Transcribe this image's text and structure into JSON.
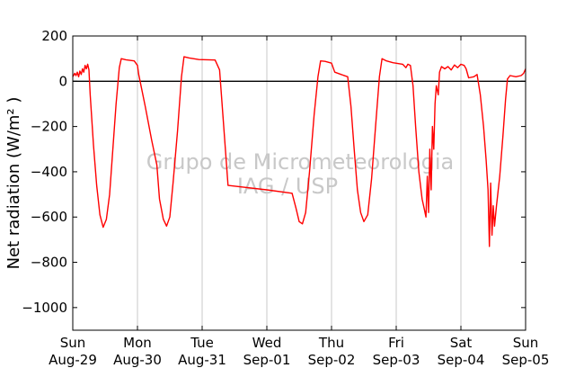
{
  "chart_data": {
    "type": "line",
    "ylabel": "Net radiation (W/m² )",
    "ylim": [
      -1100,
      200
    ],
    "xlim": [
      0,
      7
    ],
    "yticks": [
      200,
      0,
      -200,
      -400,
      -600,
      -800,
      -1000
    ],
    "ytick_labels": [
      "200",
      "0",
      "−200",
      "−400",
      "−600",
      "−800",
      "−1000"
    ],
    "xticks": [
      {
        "x": 0,
        "day": "Sun",
        "date": "Aug-29"
      },
      {
        "x": 1,
        "day": "Mon",
        "date": "Aug-30"
      },
      {
        "x": 2,
        "day": "Tue",
        "date": "Aug-31"
      },
      {
        "x": 3,
        "day": "Wed",
        "date": "Sep-01"
      },
      {
        "x": 4,
        "day": "Thu",
        "date": "Sep-02"
      },
      {
        "x": 5,
        "day": "Fri",
        "date": "Sep-03"
      },
      {
        "x": 6,
        "day": "Sat",
        "date": "Sep-04"
      },
      {
        "x": 7,
        "day": "Sun",
        "date": "Sep-05"
      }
    ],
    "grid": "vertical",
    "reference_line_y": 0,
    "watermark": [
      "Grupo de Micrometeorologia",
      "IAG / USP"
    ],
    "series": [
      {
        "color": "#ff0000",
        "points": [
          [
            0.0,
            20
          ],
          [
            0.03,
            35
          ],
          [
            0.05,
            25
          ],
          [
            0.07,
            40
          ],
          [
            0.09,
            20
          ],
          [
            0.11,
            45
          ],
          [
            0.13,
            30
          ],
          [
            0.15,
            55
          ],
          [
            0.17,
            40
          ],
          [
            0.19,
            70
          ],
          [
            0.21,
            55
          ],
          [
            0.23,
            75
          ],
          [
            0.25,
            50
          ],
          [
            0.27,
            -60
          ],
          [
            0.32,
            -280
          ],
          [
            0.37,
            -460
          ],
          [
            0.42,
            -590
          ],
          [
            0.47,
            -645
          ],
          [
            0.52,
            -610
          ],
          [
            0.57,
            -500
          ],
          [
            0.62,
            -300
          ],
          [
            0.67,
            -100
          ],
          [
            0.72,
            60
          ],
          [
            0.75,
            100
          ],
          [
            0.82,
            95
          ],
          [
            0.95,
            90
          ],
          [
            1.0,
            70
          ],
          [
            1.02,
            30
          ],
          [
            1.12,
            -110
          ],
          [
            1.22,
            -260
          ],
          [
            1.3,
            -370
          ],
          [
            1.34,
            -520
          ],
          [
            1.4,
            -610
          ],
          [
            1.45,
            -640
          ],
          [
            1.5,
            -600
          ],
          [
            1.55,
            -450
          ],
          [
            1.62,
            -220
          ],
          [
            1.68,
            20
          ],
          [
            1.72,
            108
          ],
          [
            1.8,
            103
          ],
          [
            1.95,
            96
          ],
          [
            2.2,
            94
          ],
          [
            2.27,
            50
          ],
          [
            2.4,
            -460
          ],
          [
            3.0,
            -480
          ],
          [
            3.39,
            -495
          ],
          [
            3.45,
            -560
          ],
          [
            3.5,
            -620
          ],
          [
            3.55,
            -630
          ],
          [
            3.6,
            -580
          ],
          [
            3.66,
            -400
          ],
          [
            3.73,
            -150
          ],
          [
            3.79,
            20
          ],
          [
            3.83,
            90
          ],
          [
            3.9,
            88
          ],
          [
            4.0,
            80
          ],
          [
            4.05,
            40
          ],
          [
            4.15,
            30
          ],
          [
            4.25,
            20
          ],
          [
            4.3,
            -110
          ],
          [
            4.35,
            -300
          ],
          [
            4.4,
            -480
          ],
          [
            4.45,
            -580
          ],
          [
            4.5,
            -620
          ],
          [
            4.56,
            -590
          ],
          [
            4.62,
            -430
          ],
          [
            4.68,
            -200
          ],
          [
            4.74,
            20
          ],
          [
            4.78,
            100
          ],
          [
            4.85,
            90
          ],
          [
            4.95,
            82
          ],
          [
            5.1,
            75
          ],
          [
            5.15,
            60
          ],
          [
            5.18,
            75
          ],
          [
            5.22,
            70
          ],
          [
            5.26,
            -20
          ],
          [
            5.3,
            -200
          ],
          [
            5.35,
            -400
          ],
          [
            5.4,
            -520
          ],
          [
            5.43,
            -560
          ],
          [
            5.46,
            -600
          ],
          [
            5.48,
            -420
          ],
          [
            5.5,
            -580
          ],
          [
            5.52,
            -300
          ],
          [
            5.54,
            -480
          ],
          [
            5.56,
            -200
          ],
          [
            5.58,
            -300
          ],
          [
            5.6,
            -100
          ],
          [
            5.62,
            -20
          ],
          [
            5.65,
            -60
          ],
          [
            5.67,
            40
          ],
          [
            5.7,
            65
          ],
          [
            5.75,
            55
          ],
          [
            5.8,
            65
          ],
          [
            5.85,
            50
          ],
          [
            5.9,
            72
          ],
          [
            5.95,
            60
          ],
          [
            6.0,
            75
          ],
          [
            6.05,
            70
          ],
          [
            6.08,
            55
          ],
          [
            6.12,
            15
          ],
          [
            6.2,
            20
          ],
          [
            6.25,
            30
          ],
          [
            6.3,
            -60
          ],
          [
            6.35,
            -200
          ],
          [
            6.39,
            -350
          ],
          [
            6.42,
            -480
          ],
          [
            6.44,
            -730
          ],
          [
            6.46,
            -450
          ],
          [
            6.48,
            -680
          ],
          [
            6.5,
            -550
          ],
          [
            6.52,
            -640
          ],
          [
            6.55,
            -550
          ],
          [
            6.6,
            -420
          ],
          [
            6.65,
            -240
          ],
          [
            6.69,
            -80
          ],
          [
            6.72,
            10
          ],
          [
            6.76,
            25
          ],
          [
            6.85,
            20
          ],
          [
            6.93,
            25
          ],
          [
            6.97,
            35
          ],
          [
            7.0,
            55
          ]
        ]
      }
    ]
  }
}
